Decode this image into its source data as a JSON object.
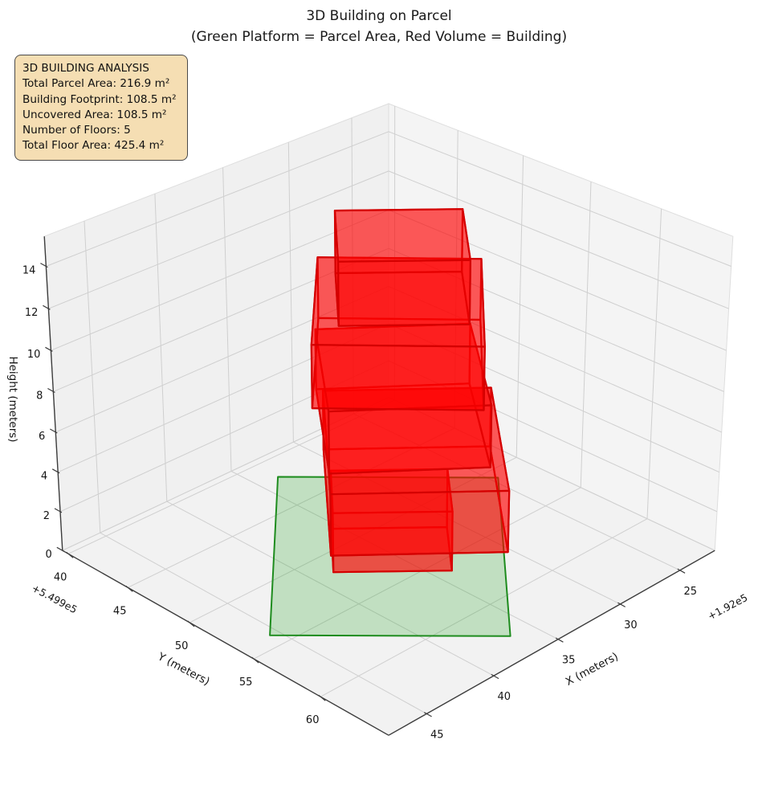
{
  "figure": {
    "title_line1": "3D Building on Parcel",
    "title_line2": "(Green Platform = Parcel Area, Red Volume = Building)",
    "background": "#ffffff"
  },
  "annotation": {
    "title": "3D BUILDING ANALYSIS",
    "lines": [
      "Total Parcel Area: 216.9 m²",
      "Building Footprint: 108.5 m²",
      "Uncovered Area: 108.5 m²",
      "Number of Floors: 5",
      "Total Floor Area: 425.4 m²"
    ],
    "bg_color": "#F5DEB3",
    "border_color": "#4a4a4a"
  },
  "stats": {
    "total_parcel_area_m2": 216.9,
    "building_footprint_m2": 108.5,
    "uncovered_area_m2": 108.5,
    "number_of_floors": 5,
    "total_floor_area_m2": 425.4
  },
  "chart_data": {
    "type": "3d-building",
    "title": "3D Building on Parcel",
    "subtitle": "(Green Platform = Parcel Area, Red Volume = Building)",
    "xlabel": "X (meters)",
    "ylabel": "Y (meters)",
    "zlabel": "Height (meters)",
    "x_ticks": [
      45,
      40,
      35,
      30,
      25
    ],
    "x_offset_text": "+1.92e5",
    "y_ticks": [
      40,
      45,
      50,
      55,
      60
    ],
    "y_offset_text": "+5.499e5",
    "z_ticks": [
      0,
      2,
      4,
      6,
      8,
      10,
      12,
      14
    ],
    "xlim": [
      22,
      47.75
    ],
    "ylim": [
      39.5,
      64.9
    ],
    "zlim": [
      0,
      15.4
    ],
    "view": {
      "elev": 28,
      "azim": 45
    },
    "grid": true,
    "pane_color_left": "#f0f0f0",
    "pane_color_right": "#f4f4f4",
    "pane_color_floor": "#f2f2f2",
    "grid_color": "#cfcfcf",
    "spine_color": "#3c3c3c",
    "parcel": {
      "label": "Parcel Area",
      "area_m2": 216.9,
      "fill_color": "rgba(0,150,0,0.20)",
      "edge_color": "#1e8c1e",
      "polygon": [
        [
          33.53,
          41.88
        ],
        [
          24.53,
          50.88
        ],
        [
          36.57,
          62.92
        ],
        [
          45.57,
          53.92
        ]
      ]
    },
    "building": {
      "label": "Building",
      "footprint_area_m2": 108.5,
      "num_floors": 5,
      "floor_height_m": 3,
      "total_floor_area_m2": 425.4,
      "fill_color": "rgba(255,0,0,0.40)",
      "edge_color": "#d40000",
      "floors": [
        {
          "name": "floor-1",
          "z0": 0,
          "z1": 3,
          "polygon": [
            [
              30.72,
              52.7
            ],
            [
              33.93,
              56.14
            ],
            [
              38.68,
              51.7
            ],
            [
              35.47,
              48.27
            ]
          ]
        },
        {
          "name": "floor-2",
          "z0": 3,
          "z1": 6,
          "polygon": [
            [
              27.12,
              52.58
            ],
            [
              34.94,
              61.15
            ],
            [
              41.88,
              54.82
            ],
            [
              34.06,
              46.25
            ]
          ]
        },
        {
          "name": "floor-3",
          "z0": 6,
          "z1": 9,
          "polygon": [
            [
              27.62,
              51.39
            ],
            [
              33.79,
              58.74
            ],
            [
              40.38,
              53.21
            ],
            [
              34.21,
              45.86
            ]
          ]
        },
        {
          "name": "floor-4",
          "z0": 9,
          "z1": 12,
          "polygon": [
            [
              26.86,
              51.45
            ],
            [
              34.48,
              58.82
            ],
            [
              40.74,
              52.35
            ],
            [
              33.12,
              44.98
            ]
          ]
        },
        {
          "name": "floor-5",
          "z0": 12,
          "z1": 15,
          "polygon": [
            [
              28.8,
              51.81
            ],
            [
              33.16,
              56.49
            ],
            [
              38.2,
              51.79
            ],
            [
              33.84,
              47.11
            ]
          ]
        }
      ]
    }
  }
}
